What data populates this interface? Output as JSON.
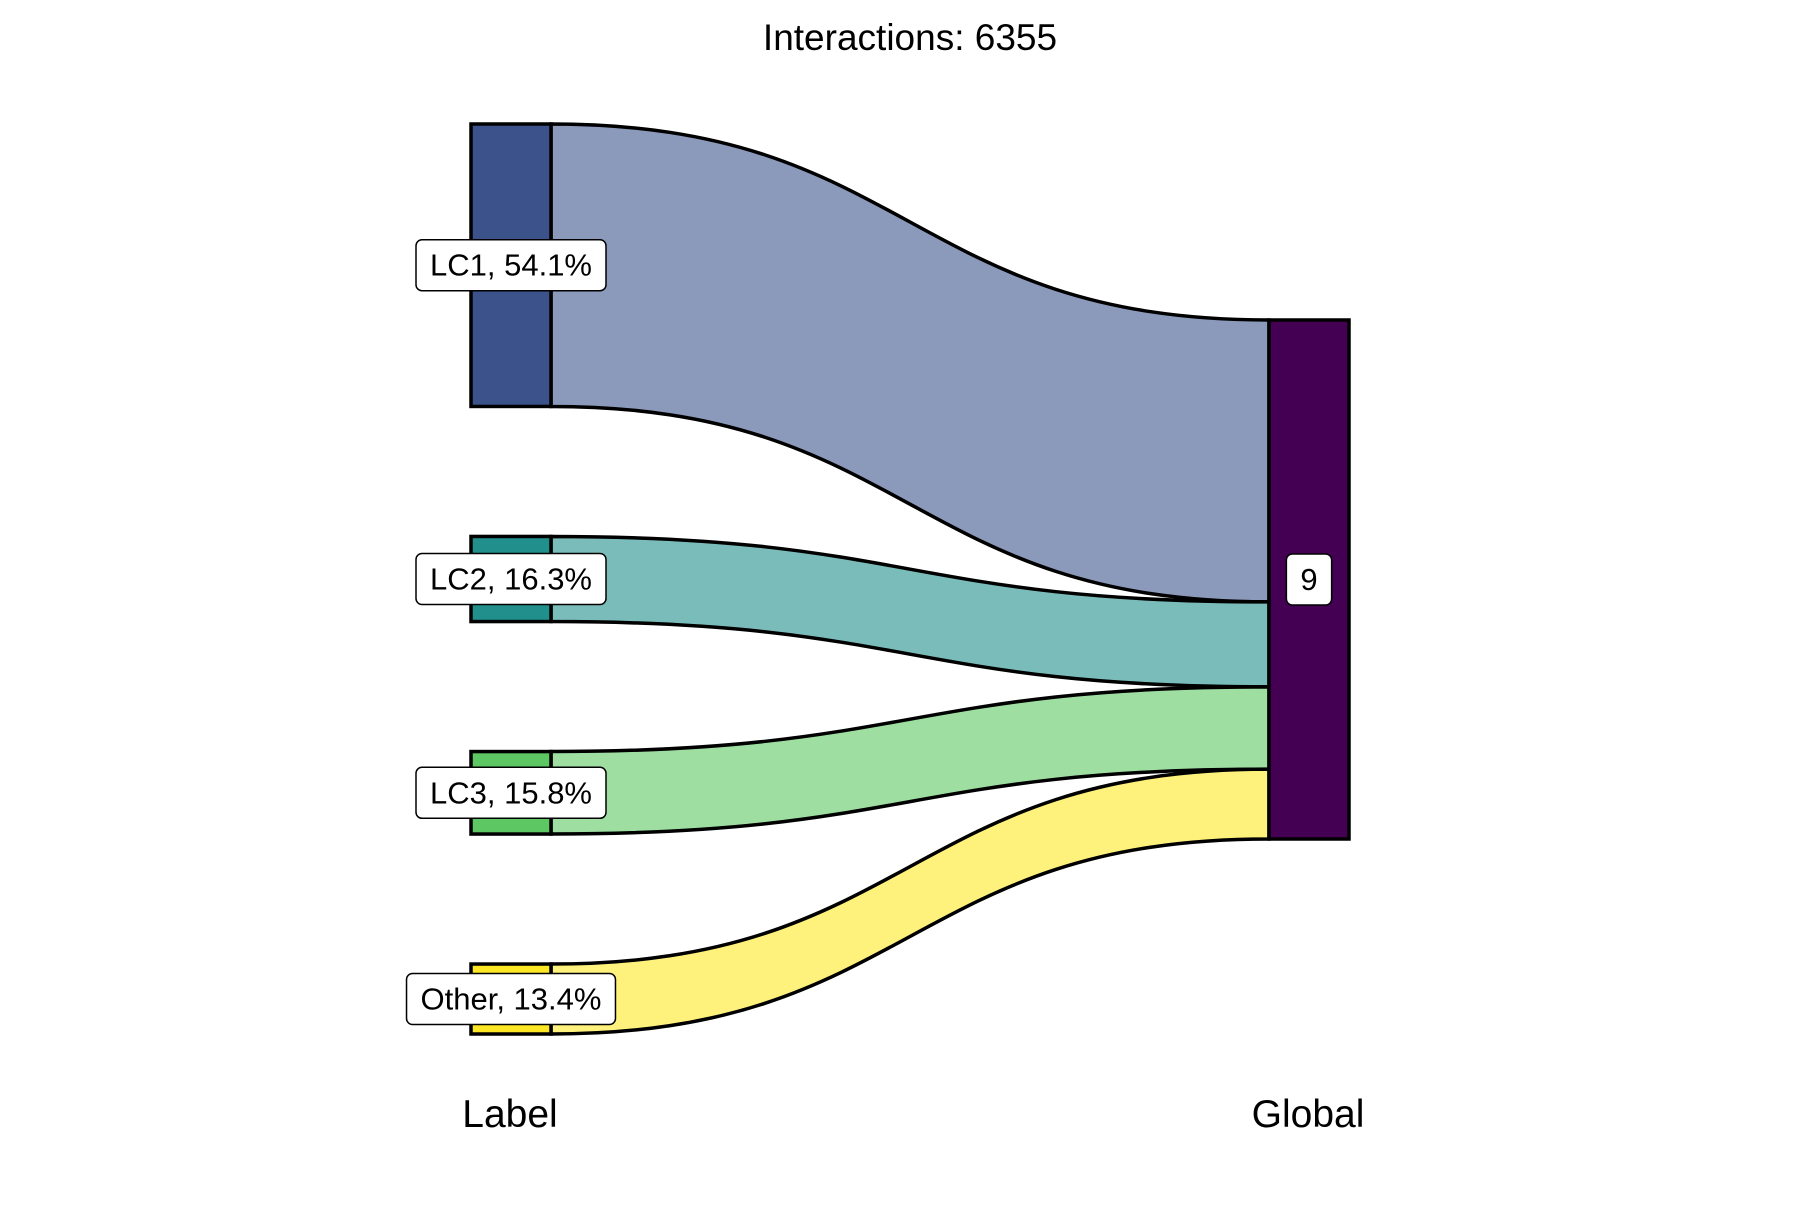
{
  "chart_data": {
    "type": "sankey",
    "title": "Interactions: 6355",
    "axis_labels": [
      "Label",
      "Global"
    ],
    "total": 6355,
    "source_nodes": [
      {
        "name": "LC1",
        "label": "LC1, 54.1%",
        "share": 54.1,
        "color": "#3B528B",
        "flow_color": "#8B99BA"
      },
      {
        "name": "LC2",
        "label": "LC2, 16.3%",
        "share": 16.3,
        "color": "#21908C",
        "flow_color": "#7ABCBA"
      },
      {
        "name": "LC3",
        "label": "LC3, 15.8%",
        "share": 15.8,
        "color": "#5DC863",
        "flow_color": "#9EDFA1"
      },
      {
        "name": "Other",
        "label": "Other, 13.4%",
        "share": 13.4,
        "color": "#FDE725",
        "flow_color": "#FEF17C"
      }
    ],
    "target_nodes": [
      {
        "name": "9",
        "label": "9",
        "color": "#440154"
      }
    ],
    "links": [
      {
        "source": "LC1",
        "target": "9",
        "share": 54.1
      },
      {
        "source": "LC2",
        "target": "9",
        "share": 16.3
      },
      {
        "source": "LC3",
        "target": "9",
        "share": 15.8
      },
      {
        "source": "Other",
        "target": "9",
        "share": 13.4
      }
    ]
  }
}
